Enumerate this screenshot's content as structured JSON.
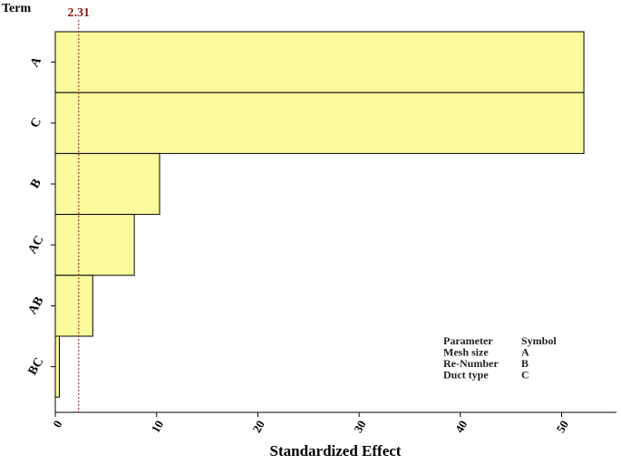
{
  "chart_data": {
    "type": "bar",
    "orientation": "horizontal",
    "categories": [
      "A",
      "C",
      "B",
      "AC",
      "AB",
      "BC"
    ],
    "values": [
      52.2,
      52.2,
      10.3,
      7.8,
      3.7,
      0.4
    ],
    "bar_color": "#fbfa9c",
    "bar_stroke": "#000000",
    "reference_line": {
      "value": 2.31,
      "label": "2.31",
      "color": "#8b1a1a"
    },
    "xlabel": "Standardized Effect",
    "ylabel": "Term",
    "xlim": [
      0,
      55
    ],
    "xticks": [
      0,
      10,
      20,
      30,
      40,
      50
    ],
    "grid": false,
    "legend_table": {
      "headers": [
        "Parameter",
        "Symbol"
      ],
      "rows": [
        [
          "Mesh size",
          "A"
        ],
        [
          "Re-Number",
          "B"
        ],
        [
          "Duct type",
          "C"
        ]
      ]
    }
  }
}
